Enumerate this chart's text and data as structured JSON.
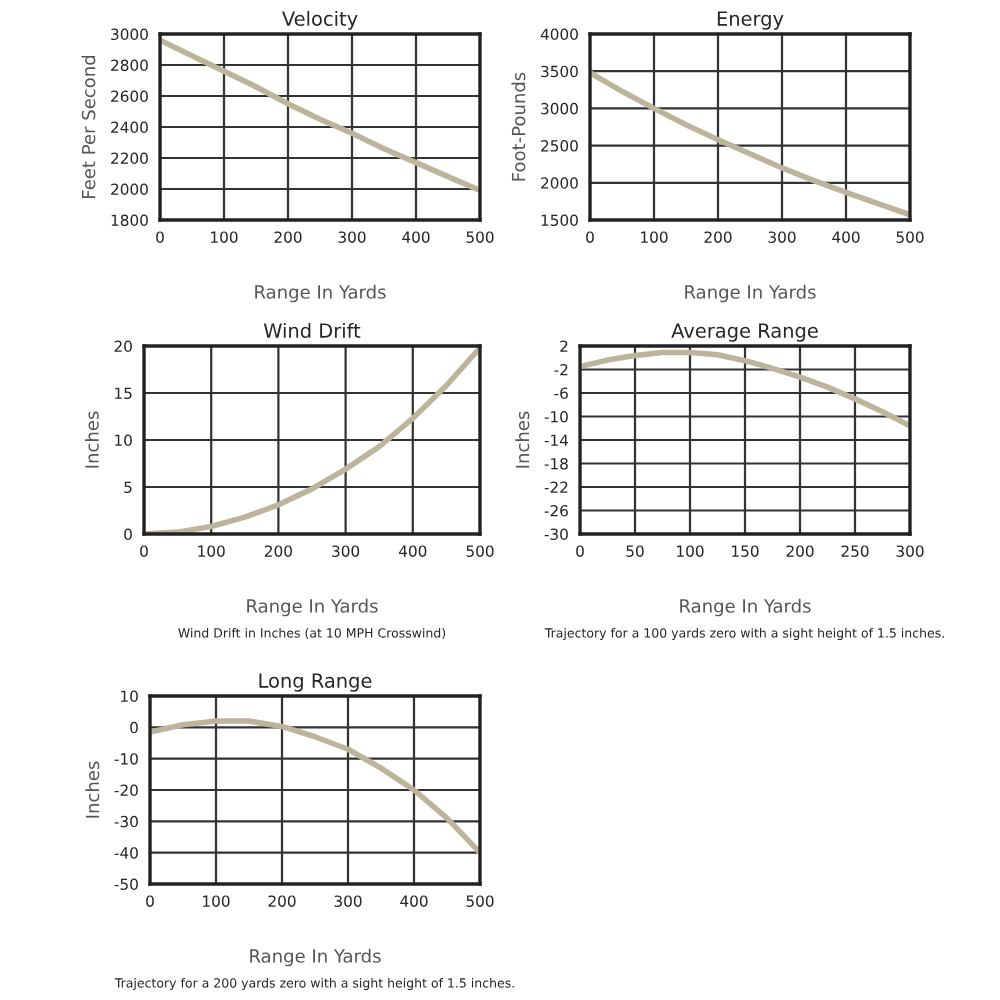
{
  "chart_data": [
    {
      "type": "line",
      "title": "Velocity",
      "xlabel": "Range In Yards",
      "ylabel": "Feet Per Second",
      "x": [
        0,
        50,
        100,
        150,
        200,
        250,
        300,
        350,
        400,
        450,
        500
      ],
      "series": [
        {
          "color": "#bdb49c",
          "values": [
            2960,
            2860,
            2760,
            2660,
            2550,
            2450,
            2360,
            2260,
            2170,
            2080,
            1990
          ]
        }
      ],
      "xlim": [
        0,
        500
      ],
      "ylim": [
        1800,
        3000
      ],
      "xticks": [
        0,
        100,
        200,
        300,
        400,
        500
      ],
      "yticks": [
        1800,
        2000,
        2200,
        2400,
        2600,
        2800,
        3000
      ],
      "grid": true
    },
    {
      "type": "line",
      "title": "Energy",
      "xlabel": "Range In Yards",
      "ylabel": "Foot-Pounds",
      "x": [
        0,
        50,
        100,
        150,
        200,
        250,
        300,
        350,
        400,
        450,
        500
      ],
      "series": [
        {
          "color": "#bdb49c",
          "values": [
            3480,
            3230,
            3000,
            2780,
            2580,
            2390,
            2200,
            2030,
            1870,
            1720,
            1570
          ]
        }
      ],
      "xlim": [
        0,
        500
      ],
      "ylim": [
        1500,
        4000
      ],
      "xticks": [
        0,
        100,
        200,
        300,
        400,
        500
      ],
      "yticks": [
        1500,
        2000,
        2500,
        3000,
        3500,
        4000
      ],
      "grid": true
    },
    {
      "type": "line",
      "title": "Wind Drift",
      "xlabel": "Range In Yards",
      "ylabel": "Inches",
      "annotations": [
        "Wind Drift in Inches (at 10 MPH Crosswind)"
      ],
      "x": [
        0,
        50,
        100,
        150,
        200,
        250,
        300,
        350,
        400,
        450,
        500
      ],
      "series": [
        {
          "color": "#bdb49c",
          "values": [
            0,
            0.2,
            0.8,
            1.8,
            3.1,
            4.8,
            6.9,
            9.3,
            12.3,
            15.8,
            19.8
          ]
        }
      ],
      "xlim": [
        0,
        500
      ],
      "ylim": [
        0,
        20
      ],
      "xticks": [
        0,
        100,
        200,
        300,
        400,
        500
      ],
      "yticks": [
        0,
        5,
        10,
        15,
        20
      ],
      "grid": true
    },
    {
      "type": "line",
      "title": "Average Range",
      "xlabel": "Range In Yards",
      "ylabel": "Inches",
      "annotations": [
        "Trajectory for a 100 yards zero with a sight height of 1.5 inches."
      ],
      "x": [
        0,
        25,
        50,
        75,
        100,
        125,
        150,
        175,
        200,
        225,
        250,
        275,
        300
      ],
      "series": [
        {
          "color": "#bdb49c",
          "values": [
            -1.5,
            -0.4,
            0.4,
            0.9,
            0.9,
            0.5,
            -0.5,
            -1.8,
            -3.3,
            -5,
            -7,
            -9.2,
            -11.6
          ]
        }
      ],
      "xlim": [
        0,
        300
      ],
      "ylim": [
        -30,
        2
      ],
      "xticks": [
        0,
        50,
        100,
        150,
        200,
        250,
        300
      ],
      "yticks": [
        -30,
        -26,
        -22,
        -18,
        -14,
        -10,
        -6,
        -2,
        2
      ],
      "grid": true
    },
    {
      "type": "line",
      "title": "Long Range",
      "xlabel": "Range In Yards",
      "ylabel": "Inches",
      "annotations": [
        "Trajectory for a 200 yards zero with a sight height of 1.5 inches."
      ],
      "x": [
        0,
        50,
        100,
        150,
        200,
        250,
        300,
        350,
        400,
        450,
        500
      ],
      "series": [
        {
          "color": "#bdb49c",
          "values": [
            -1.5,
            0.8,
            2,
            2,
            0.3,
            -3,
            -7,
            -13,
            -20,
            -29,
            -40
          ]
        }
      ],
      "xlim": [
        0,
        500
      ],
      "ylim": [
        -50,
        10
      ],
      "xticks": [
        0,
        100,
        200,
        300,
        400,
        500
      ],
      "yticks": [
        -50,
        -40,
        -30,
        -20,
        -10,
        0,
        10
      ],
      "grid": true
    }
  ]
}
